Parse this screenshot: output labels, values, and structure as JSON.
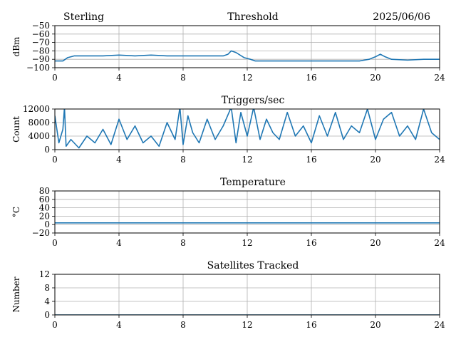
{
  "header": {
    "station": "Sterling",
    "date": "2025/06/06"
  },
  "colors": {
    "line": "#1f77b4",
    "grid": "#b0b0b0",
    "axes": "#000000"
  },
  "chart_data": [
    {
      "type": "line",
      "title": "Threshold",
      "ylabel": "dBm",
      "xlabel": "",
      "xlim": [
        0,
        24
      ],
      "xticks": [
        0,
        4,
        8,
        12,
        16,
        20,
        24
      ],
      "ylim": [
        -100,
        -50
      ],
      "yticks": [
        -100,
        -90,
        -80,
        -70,
        -60,
        -50
      ],
      "ytick_labels": [
        "−100",
        "−90",
        "−80",
        "−70",
        "−60",
        "−50"
      ],
      "grid": true,
      "series": [
        {
          "x": [
            0,
            0.5,
            0.8,
            1.2,
            2,
            3,
            4,
            5,
            6,
            7,
            8,
            9,
            10,
            10.5,
            10.8,
            11,
            11.3,
            11.8,
            12.2,
            12.5,
            13,
            14,
            15,
            16,
            17,
            18,
            19,
            19.6,
            20,
            20.3,
            20.6,
            21,
            22,
            23,
            24
          ],
          "y": [
            -92,
            -92,
            -88,
            -86,
            -86,
            -86,
            -85,
            -86,
            -85,
            -86,
            -86,
            -86,
            -86,
            -86,
            -84,
            -80,
            -82,
            -88,
            -90,
            -92,
            -92,
            -92,
            -92,
            -92,
            -92,
            -92,
            -92,
            -90,
            -87,
            -84,
            -87,
            -90,
            -91,
            -90,
            -90
          ]
        }
      ]
    },
    {
      "type": "line",
      "title": "Triggers/sec",
      "ylabel": "Count",
      "xlabel": "",
      "xlim": [
        0,
        24
      ],
      "xticks": [
        0,
        4,
        8,
        12,
        16,
        20,
        24
      ],
      "ylim": [
        0,
        12000
      ],
      "yticks": [
        0,
        4000,
        8000,
        12000
      ],
      "ytick_labels": [
        "0",
        "4000",
        "8000",
        "12000"
      ],
      "grid": true,
      "series": [
        {
          "x": [
            0,
            0.25,
            0.5,
            0.6,
            0.7,
            1,
            1.5,
            2,
            2.5,
            3,
            3.5,
            4,
            4.5,
            5,
            5.5,
            6,
            6.5,
            7,
            7.5,
            7.8,
            8,
            8.3,
            8.6,
            9,
            9.5,
            10,
            10.5,
            11,
            11.3,
            11.6,
            12,
            12.4,
            12.8,
            13.2,
            13.6,
            14,
            14.5,
            15,
            15.5,
            16,
            16.5,
            17,
            17.5,
            18,
            18.5,
            19,
            19.5,
            20,
            20.5,
            21,
            21.5,
            22,
            22.5,
            23,
            23.5,
            24
          ],
          "y": [
            10000,
            2000,
            6000,
            12500,
            1000,
            3000,
            500,
            4000,
            2000,
            6000,
            1500,
            9000,
            3000,
            7000,
            2000,
            4000,
            1000,
            8000,
            3000,
            12500,
            1500,
            10000,
            5000,
            2000,
            9000,
            3000,
            7000,
            12500,
            2000,
            11000,
            4000,
            12500,
            3000,
            9000,
            5000,
            3000,
            11000,
            4000,
            7000,
            2000,
            10000,
            4000,
            11000,
            3000,
            7000,
            5000,
            12000,
            3000,
            9000,
            11000,
            4000,
            7000,
            3000,
            12000,
            5000,
            3000
          ]
        }
      ]
    },
    {
      "type": "line",
      "title": "Temperature",
      "ylabel": "°C",
      "xlabel": "",
      "xlim": [
        0,
        24
      ],
      "xticks": [
        0,
        4,
        8,
        12,
        16,
        20,
        24
      ],
      "ylim": [
        -20,
        80
      ],
      "yticks": [
        -20,
        0,
        20,
        40,
        60,
        80
      ],
      "ytick_labels": [
        "−20",
        "0",
        "20",
        "40",
        "60",
        "80"
      ],
      "grid": true,
      "series": [
        {
          "x": [
            0,
            24
          ],
          "y": [
            4,
            4
          ]
        }
      ]
    },
    {
      "type": "line",
      "title": "Satellites Tracked",
      "ylabel": "Number",
      "xlabel": "",
      "xlim": [
        0,
        24
      ],
      "xticks": [
        0,
        4,
        8,
        12,
        16,
        20,
        24
      ],
      "ylim": [
        0,
        12
      ],
      "yticks": [
        0,
        4,
        8,
        12
      ],
      "ytick_labels": [
        "0",
        "4",
        "8",
        "12"
      ],
      "grid": true,
      "series": [
        {
          "x": [
            0,
            24
          ],
          "y": [
            0,
            0
          ]
        }
      ]
    }
  ]
}
